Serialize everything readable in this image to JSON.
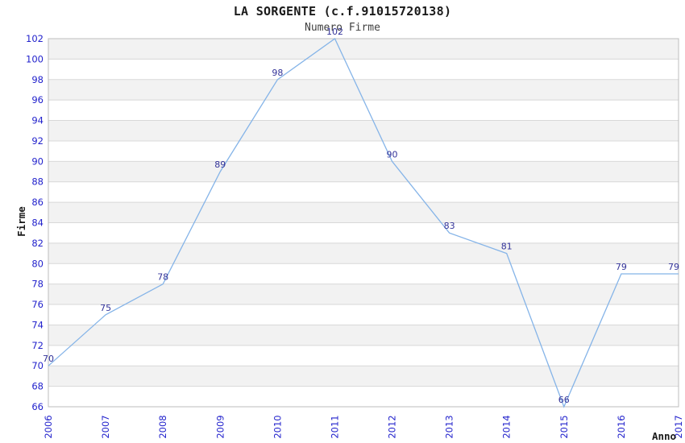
{
  "chart_data": {
    "type": "line",
    "title": "LA SORGENTE (c.f.91015720138)",
    "subtitle": "Numero Firme",
    "xlabel": "Anno",
    "ylabel": "Firme",
    "categories": [
      "2006",
      "2007",
      "2008",
      "2009",
      "2010",
      "2011",
      "2012",
      "2013",
      "2014",
      "2015",
      "2016",
      "2017"
    ],
    "series": [
      {
        "name": "Numero Firme",
        "values": [
          70,
          75,
          78,
          89,
          98,
          102,
          90,
          83,
          81,
          66,
          79,
          79
        ]
      }
    ],
    "ylim": [
      66,
      102
    ],
    "ytick_step": 2,
    "grid": "horizontal-bands-alternating",
    "legend": "none",
    "point_labels": true,
    "colors": {
      "line": "#85b4e8",
      "tick_labels": "#2222cc",
      "point_labels": "#333399",
      "band": "#f2f2f2",
      "gridline": "#d8d8d8",
      "border": "#bdbdbd",
      "title": "#1a1a1a",
      "subtitle": "#404040"
    }
  }
}
